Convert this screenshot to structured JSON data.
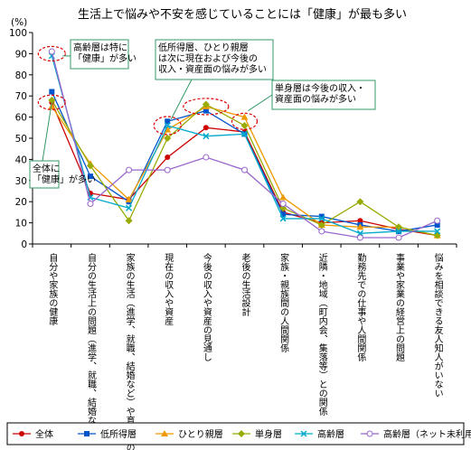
{
  "chart_data": {
    "type": "line",
    "title": "生活上で悩みや不安を感じていることには「健康」が最も多い",
    "ylabel": "(%)",
    "ylim": [
      0,
      100
    ],
    "yticks": [
      "0",
      "10",
      "20",
      "30",
      "40",
      "50",
      "60",
      "70",
      "80",
      "90",
      "100"
    ],
    "grid": false,
    "legend_position": "bottom",
    "categories": [
      "自分や家族の健康",
      "自分の生活上の問題（進学、就職、結婚など）",
      "家族の生活（進学、就職、結婚など）や育児上の問題",
      "現在の収入や資産",
      "今後の収入や資産の見通し",
      "老後の生活設計",
      "家族・親族間の人間関係",
      "近隣・地域（町内会、集落等）との関係",
      "勤務先での仕事や人間関係",
      "事業や家業の経営上の問題",
      "悩みを相談できる友人知人がいない"
    ],
    "series": [
      {
        "name": "全体",
        "color": "#cc0000",
        "marker": "circle",
        "values": [
          67,
          24,
          21,
          41,
          55,
          53,
          15,
          10,
          11,
          7,
          4
        ]
      },
      {
        "name": "低所得層",
        "color": "#0055cc",
        "marker": "square",
        "values": [
          72,
          32,
          20,
          58,
          63,
          52,
          14,
          13,
          9,
          6,
          9
        ]
      },
      {
        "name": "ひとり親層",
        "color": "#ee9900",
        "marker": "triangle",
        "values": [
          65,
          38,
          21,
          54,
          65,
          60,
          22,
          9,
          8,
          8,
          4
        ]
      },
      {
        "name": "単身層",
        "color": "#99aa00",
        "marker": "diamond",
        "values": [
          68,
          37,
          11,
          50,
          66,
          56,
          17,
          9,
          20,
          8,
          4
        ]
      },
      {
        "name": "高齢層",
        "color": "#00aacc",
        "marker": "x",
        "values": [
          89,
          22,
          17,
          56,
          51,
          52,
          12,
          12,
          5,
          6,
          6
        ]
      },
      {
        "name": "高齢層（ネット未利用者）",
        "color": "#9966cc",
        "marker": "open-circle",
        "values": [
          91,
          19,
          35,
          35,
          41,
          35,
          19,
          6,
          3,
          3,
          11
        ]
      }
    ],
    "annotations": [
      {
        "lines": [
          "高齢層は特に",
          "「健康」が多い"
        ]
      },
      {
        "lines": [
          "低所得層、ひとり親層",
          "は次に現在および今後の",
          "収入・資産面の悩みが多い"
        ]
      },
      {
        "lines": [
          "単身層は今後の収入・",
          "資産面の悩みが多い"
        ]
      },
      {
        "lines": [
          "全体に",
          "「健康」が多い"
        ]
      }
    ]
  }
}
